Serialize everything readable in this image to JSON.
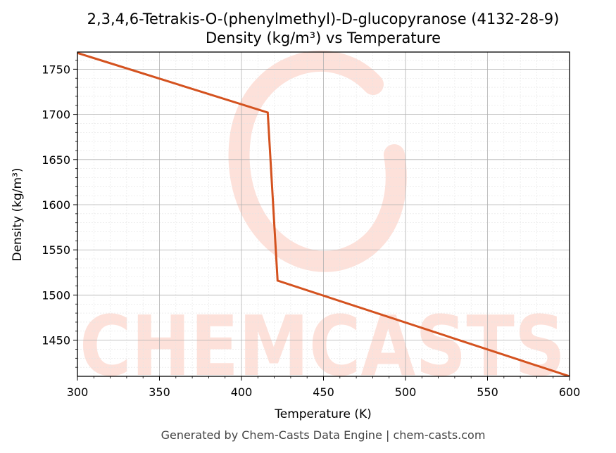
{
  "chart_data": {
    "type": "line",
    "title": "2,3,4,6-Tetrakis-O-(phenylmethyl)-D-glucopyranose (4132-28-9)",
    "subtitle": "Density (kg/m³) vs Temperature",
    "xlabel": "Temperature (K)",
    "ylabel": "Density (kg/m³)",
    "xlim": [
      300,
      600
    ],
    "ylim": [
      1410,
      1769
    ],
    "x_ticks": [
      300,
      350,
      400,
      450,
      500,
      550,
      600
    ],
    "y_ticks": [
      1450,
      1500,
      1550,
      1600,
      1650,
      1700,
      1750
    ],
    "grid": true,
    "series": [
      {
        "x": [
          300,
          416,
          422,
          600
        ],
        "y": [
          1768,
          1702,
          1516,
          1410
        ]
      }
    ]
  },
  "colors": {
    "line": "#d4521f",
    "grid_major": "#b0b0b0",
    "grid_minor": "#e4e4e4",
    "watermark": "#fde1da"
  },
  "footer": {
    "text": "Generated by Chem-Casts Data Engine | chem-casts.com"
  },
  "watermark": {
    "text": "CHEMCASTS"
  }
}
